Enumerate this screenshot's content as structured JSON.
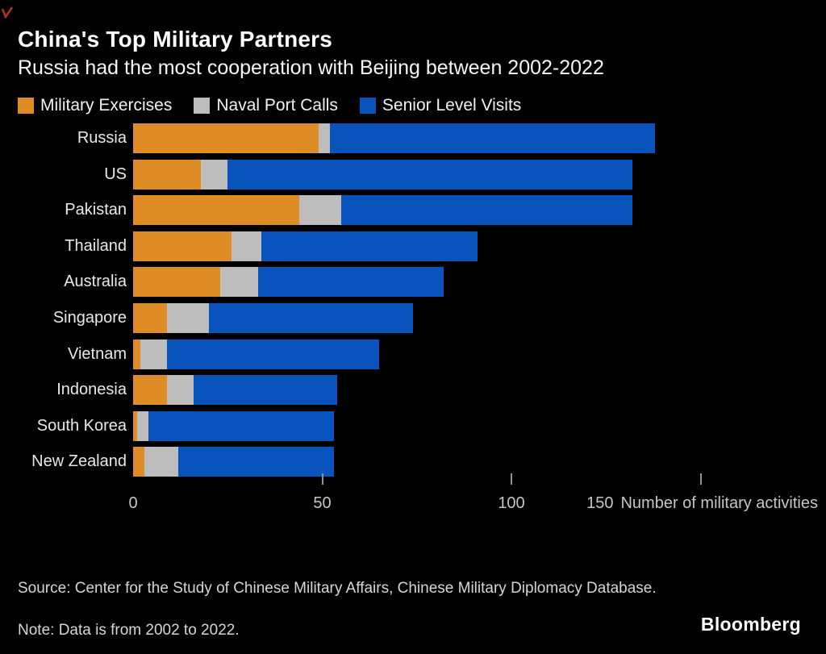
{
  "page": {
    "background": "#000000",
    "corner_mark_color": "#b03028"
  },
  "header": {
    "title": "China's Top Military Partners",
    "subtitle": "Russia had the most cooperation with Beijing between 2002-2022"
  },
  "chart_data": {
    "type": "bar",
    "orientation": "horizontal",
    "stacked": true,
    "title": "China's Top Military Partners",
    "subtitle": "Russia had the most cooperation with Beijing between 2002-2022",
    "xlabel": "Number of military activities",
    "ylabel": "",
    "xlim": [
      0,
      181
    ],
    "grid": false,
    "legend_position": "top",
    "categories": [
      "Russia",
      "US",
      "Pakistan",
      "Thailand",
      "Australia",
      "Singapore",
      "Vietnam",
      "Indonesia",
      "South Korea",
      "New Zealand"
    ],
    "series": [
      {
        "name": "Military Exercises",
        "color": "#DE8C26",
        "values": [
          49,
          18,
          44,
          26,
          23,
          9,
          2,
          9,
          1,
          3
        ]
      },
      {
        "name": "Naval Port Calls",
        "color": "#BDBDBD",
        "values": [
          3,
          7,
          11,
          8,
          10,
          11,
          7,
          7,
          3,
          9
        ]
      },
      {
        "name": "Senior Level Visits",
        "color": "#0854BC",
        "values": [
          86,
          107,
          77,
          57,
          49,
          54,
          56,
          38,
          49,
          41
        ]
      }
    ],
    "x_axis": {
      "inline_tick_labels": [
        "0",
        "50",
        "100"
      ],
      "inline_tick_values": [
        0,
        50,
        100
      ],
      "tick_mark_values": [
        50,
        100,
        150
      ],
      "right_tick_label": "150",
      "title": "Number of military activities"
    }
  },
  "footer": {
    "source": "Source: Center for the Study of Chinese Military Affairs, Chinese Military Diplomacy Database.",
    "note": "Note: Data is from 2002 to 2022.",
    "brand": "Bloomberg"
  }
}
